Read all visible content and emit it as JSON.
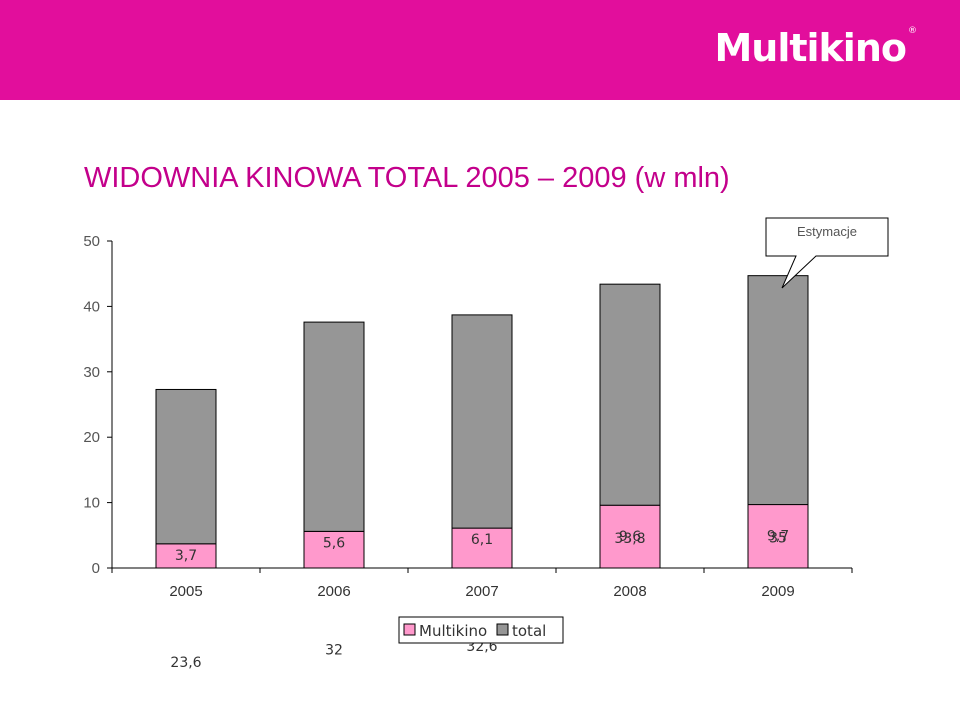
{
  "header": {
    "brand": "Multikino",
    "registered_mark": "®",
    "color": "#e20e9c"
  },
  "chart_data": {
    "type": "bar",
    "stacked": true,
    "title": "WIDOWNIA KINOWA TOTAL 2005 – 2009 (w mln)",
    "categories": [
      "2005",
      "2006",
      "2007",
      "2008",
      "2009"
    ],
    "series": [
      {
        "name": "Multikino",
        "values": [
          3.7,
          5.6,
          6.1,
          9.6,
          9.7
        ],
        "labels": [
          "3,7",
          "5,6",
          "6,1",
          "9,6",
          "9,7"
        ],
        "color": "#ff99cc"
      },
      {
        "name": "total",
        "values": [
          23.6,
          32,
          32.6,
          33.8,
          35
        ],
        "labels": [
          "23,6",
          "32",
          "32,6",
          "33,8",
          "35"
        ],
        "color": "#969696"
      }
    ],
    "ylim": [
      0,
      50
    ],
    "yticks": [
      "0",
      "10",
      "20",
      "30",
      "40",
      "50"
    ],
    "annotation": "Estymacje",
    "legend_position": "bottom",
    "grid": false
  }
}
